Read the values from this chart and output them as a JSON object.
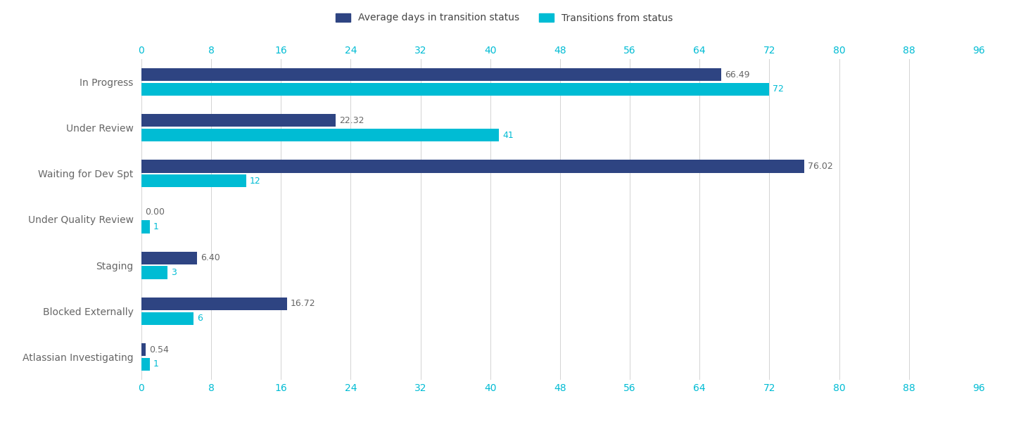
{
  "categories": [
    "In Progress",
    "Under Review",
    "Waiting for Dev Spt",
    "Under Quality Review",
    "Staging",
    "Blocked Externally",
    "Atlassian Investigating"
  ],
  "avg_days": [
    66.49,
    22.32,
    76.02,
    0.0,
    6.4,
    16.72,
    0.54
  ],
  "transitions": [
    72,
    41,
    12,
    1,
    3,
    6,
    1
  ],
  "avg_color": "#2e4482",
  "trans_color": "#00bcd4",
  "bar_height": 0.28,
  "bar_gap": 0.04,
  "xlim": [
    0,
    96
  ],
  "xticks": [
    0,
    8,
    16,
    24,
    32,
    40,
    48,
    56,
    64,
    72,
    80,
    88,
    96
  ],
  "legend_avg": "Average days in transition status",
  "legend_trans": "Transitions from status",
  "background_color": "#ffffff",
  "grid_color": "#d3d3d3",
  "tick_color": "#00bcd4",
  "label_color": "#666666",
  "title_color": "#444444",
  "value_label_avg_color": "#666666",
  "value_label_trans_color": "#00bcd4"
}
